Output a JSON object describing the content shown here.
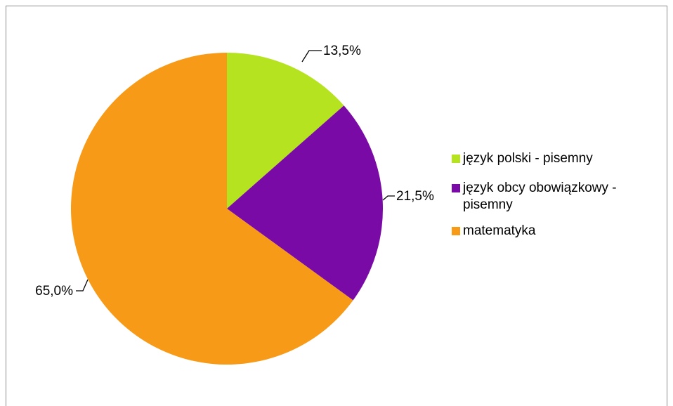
{
  "chart_data": {
    "type": "pie",
    "categories": [
      "język polski - pisemny",
      "język obcy obowiązkowy - pisemny",
      "matematyka"
    ],
    "values": [
      13.5,
      21.5,
      65.0
    ],
    "data_labels": [
      "13,5%",
      "21,5%",
      "65,0%"
    ],
    "colors": [
      "#b5e31f",
      "#7a0aa6",
      "#f79a17"
    ],
    "start_angle": "12 o'clock",
    "direction": "clockwise",
    "legend_position": "right"
  },
  "legend": {
    "items": [
      {
        "label": "język polski - pisemny",
        "color": "#b5e31f"
      },
      {
        "label": "język obcy obowiązkowy - pisemny",
        "color": "#7a0aa6"
      },
      {
        "label": "matematyka",
        "color": "#f79a17"
      }
    ]
  }
}
